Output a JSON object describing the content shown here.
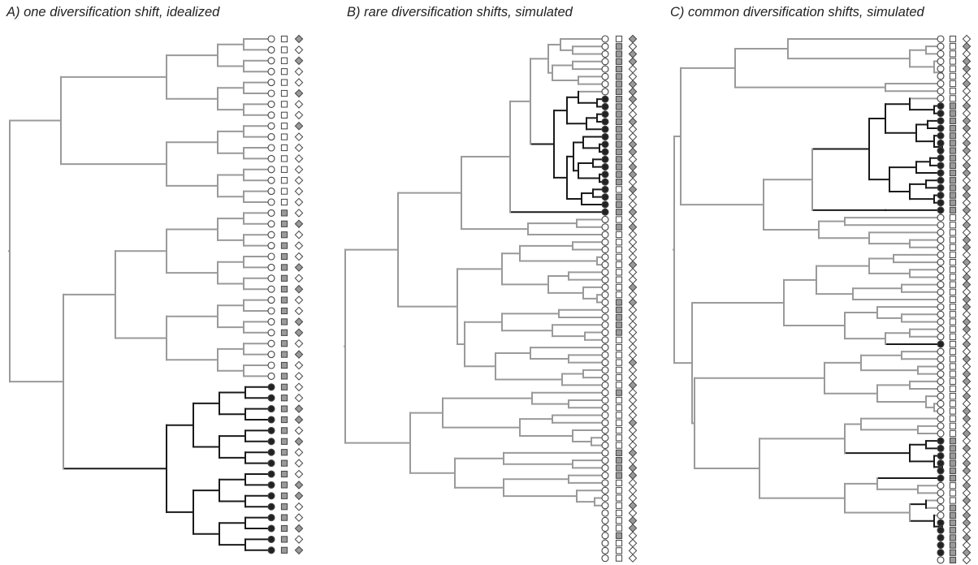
{
  "colors": {
    "background": "#ffffff",
    "normal_branch": "#9a9a9a",
    "shift_branch": "#1a1a1a",
    "filled_state": "#222222",
    "gray_state": "#9a9a9a",
    "outline": "#444444",
    "open_state": "#ffffff"
  },
  "legend_encoding": {
    "circle": "focal trait (open / black)",
    "square": "neutral trait 1 (open / gray)",
    "diamond": "neutral trait 2 (open / gray)"
  },
  "panels": [
    {
      "id": "A",
      "title": "A) one diversification shift, idealized",
      "tips": 48,
      "shift_clade_tips": [
        32,
        47
      ],
      "circle_filled": [
        0,
        0,
        0,
        0,
        0,
        0,
        0,
        0,
        0,
        0,
        0,
        0,
        0,
        0,
        0,
        0,
        0,
        0,
        0,
        0,
        0,
        0,
        0,
        0,
        0,
        0,
        0,
        0,
        0,
        0,
        0,
        0,
        1,
        1,
        1,
        1,
        1,
        1,
        1,
        1,
        1,
        1,
        1,
        1,
        1,
        1,
        1,
        1
      ],
      "square_filled": [
        0,
        0,
        0,
        0,
        0,
        0,
        0,
        0,
        0,
        0,
        0,
        0,
        0,
        0,
        0,
        0,
        1,
        1,
        1,
        1,
        1,
        1,
        1,
        1,
        1,
        1,
        1,
        1,
        1,
        1,
        1,
        1,
        1,
        1,
        1,
        1,
        1,
        1,
        1,
        1,
        1,
        1,
        1,
        1,
        1,
        1,
        1,
        1
      ],
      "diamond_filled": [
        1,
        0,
        1,
        0,
        0,
        1,
        0,
        0,
        1,
        0,
        0,
        0,
        0,
        0,
        0,
        0,
        0,
        1,
        0,
        0,
        0,
        1,
        0,
        1,
        0,
        0,
        1,
        1,
        0,
        1,
        0,
        0,
        0,
        0,
        1,
        1,
        0,
        1,
        0,
        0,
        0,
        1,
        1,
        0,
        0,
        1,
        0,
        1
      ]
    },
    {
      "id": "B",
      "title": "B) rare diversification shifts, simulated",
      "tips": 70,
      "shift_clade_tips": [
        8,
        23
      ],
      "circle_filled": [
        0,
        0,
        0,
        0,
        0,
        0,
        0,
        0,
        1,
        1,
        1,
        1,
        1,
        1,
        1,
        1,
        1,
        1,
        1,
        1,
        1,
        1,
        1,
        1,
        0,
        0,
        0,
        0,
        0,
        0,
        0,
        0,
        0,
        0,
        0,
        0,
        0,
        0,
        0,
        0,
        0,
        0,
        0,
        0,
        0,
        0,
        0,
        0,
        0,
        0,
        0,
        0,
        0,
        0,
        0,
        0,
        0,
        0,
        0,
        0,
        0,
        0,
        0,
        0,
        0,
        0,
        0,
        0,
        0,
        0
      ],
      "square_filled": [
        0,
        1,
        1,
        1,
        1,
        1,
        1,
        1,
        1,
        1,
        1,
        1,
        1,
        1,
        1,
        1,
        1,
        1,
        1,
        1,
        0,
        1,
        1,
        1,
        0,
        1,
        0,
        0,
        0,
        0,
        0,
        0,
        0,
        0,
        0,
        1,
        1,
        1,
        1,
        1,
        0,
        0,
        0,
        0,
        0,
        0,
        0,
        1,
        0,
        0,
        0,
        0,
        0,
        0,
        0,
        1,
        1,
        1,
        1,
        0,
        0,
        0,
        0,
        0,
        0,
        0,
        1,
        0,
        0,
        0
      ],
      "diamond_filled": [
        1,
        0,
        1,
        1,
        0,
        0,
        1,
        1,
        1,
        0,
        0,
        1,
        0,
        0,
        1,
        1,
        0,
        1,
        1,
        0,
        1,
        0,
        0,
        1,
        0,
        1,
        0,
        0,
        0,
        0,
        1,
        0,
        0,
        1,
        0,
        1,
        0,
        0,
        0,
        0,
        0,
        0,
        0,
        1,
        0,
        0,
        1,
        0,
        0,
        0,
        0,
        1,
        0,
        0,
        0,
        1,
        0,
        1,
        1,
        0,
        0,
        0,
        1,
        0,
        1,
        1,
        0,
        0,
        0,
        0
      ]
    },
    {
      "id": "C",
      "title": "C) common diversification shifts, simulated",
      "tips": 71,
      "circle_filled": [
        0,
        0,
        0,
        0,
        0,
        0,
        0,
        0,
        0,
        1,
        1,
        1,
        1,
        1,
        1,
        1,
        1,
        1,
        1,
        1,
        1,
        1,
        1,
        1,
        0,
        0,
        0,
        0,
        0,
        0,
        0,
        0,
        0,
        0,
        0,
        0,
        0,
        0,
        0,
        0,
        0,
        1,
        0,
        0,
        0,
        0,
        0,
        0,
        0,
        0,
        0,
        0,
        0,
        0,
        1,
        1,
        1,
        1,
        1,
        1,
        0,
        0,
        0,
        0,
        0,
        1,
        1,
        1,
        1,
        1,
        0
      ],
      "square_filled": [
        0,
        0,
        0,
        0,
        0,
        0,
        0,
        0,
        0,
        1,
        1,
        1,
        1,
        1,
        1,
        1,
        1,
        1,
        1,
        1,
        1,
        1,
        1,
        1,
        0,
        0,
        0,
        0,
        0,
        0,
        0,
        0,
        0,
        0,
        0,
        0,
        0,
        0,
        0,
        0,
        0,
        0,
        0,
        0,
        0,
        0,
        0,
        0,
        0,
        0,
        0,
        0,
        0,
        0,
        1,
        1,
        1,
        1,
        1,
        1,
        0,
        0,
        0,
        1,
        1,
        1,
        1,
        1,
        1,
        1,
        1
      ],
      "diamond_filled": [
        0,
        1,
        0,
        1,
        1,
        0,
        1,
        0,
        0,
        1,
        0,
        1,
        1,
        0,
        1,
        1,
        0,
        1,
        1,
        0,
        1,
        1,
        0,
        1,
        0,
        1,
        0,
        1,
        1,
        0,
        1,
        0,
        1,
        1,
        0,
        1,
        1,
        0,
        1,
        1,
        0,
        1,
        0,
        1,
        0,
        1,
        1,
        0,
        1,
        0,
        1,
        1,
        0,
        1,
        0,
        1,
        0,
        1,
        1,
        0,
        1,
        0,
        1,
        0,
        1,
        1,
        0,
        1,
        0,
        1,
        0
      ]
    }
  ]
}
